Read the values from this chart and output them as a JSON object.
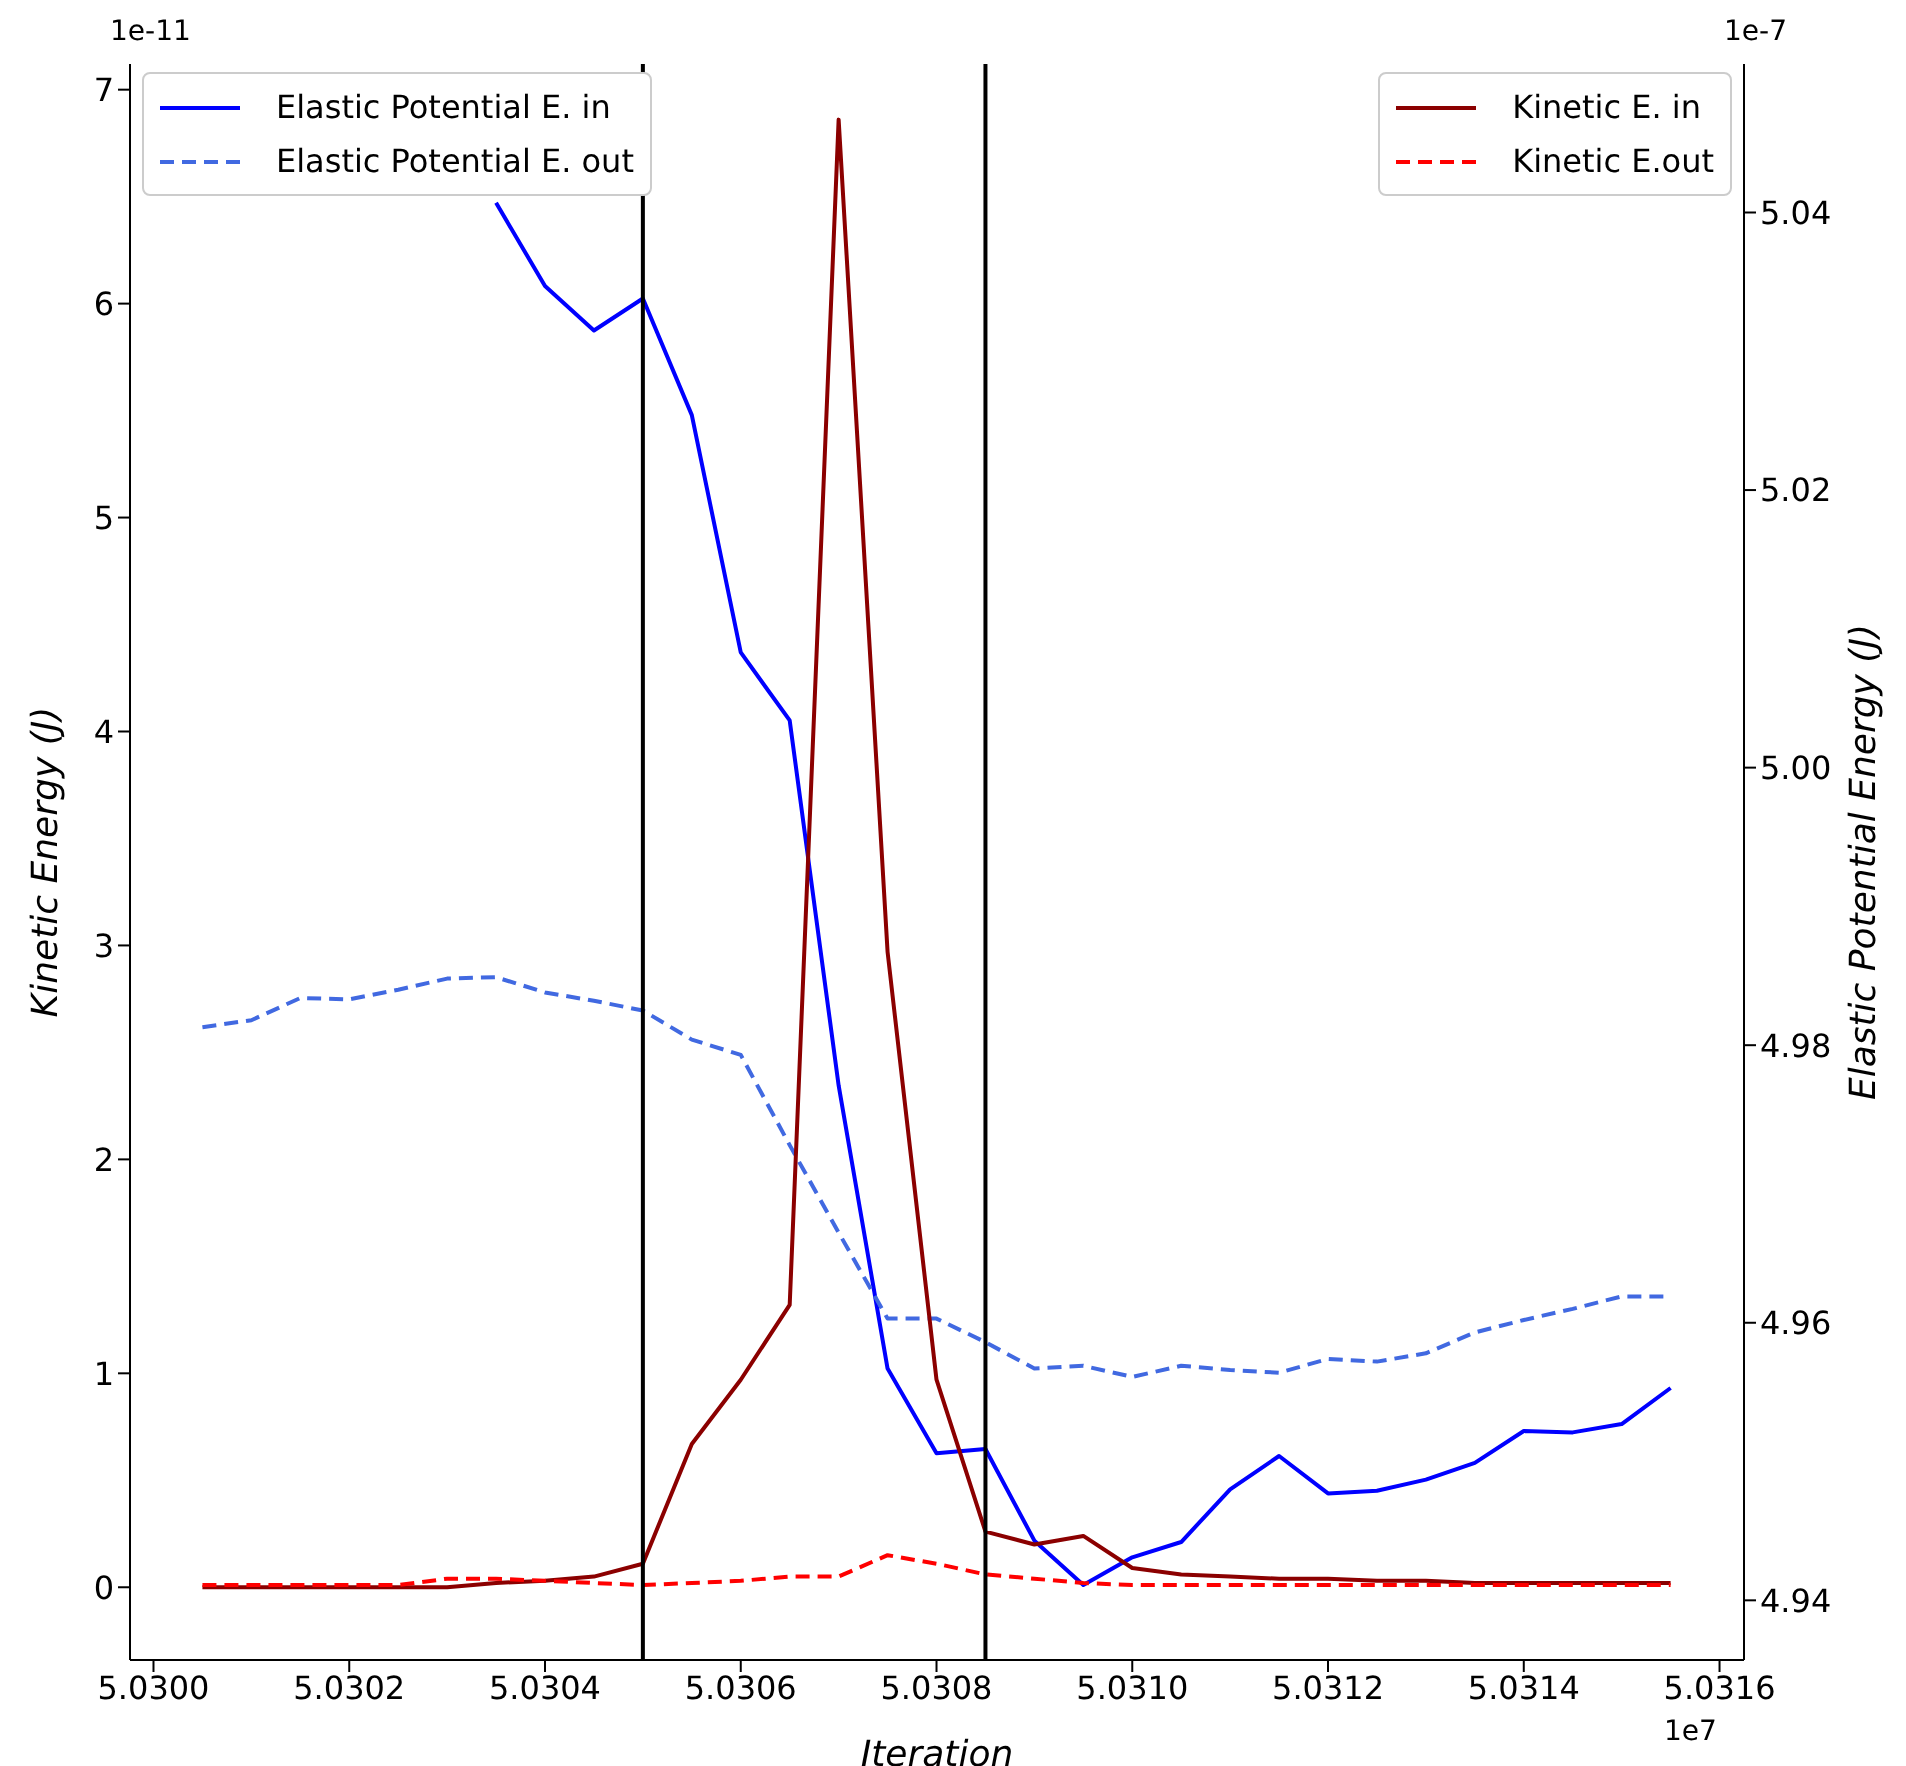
{
  "chart_data": {
    "type": "line",
    "xlabel": "Iteration",
    "ylabel": "Kinetic Energy (J)",
    "y2label": "Elastic Potential Energy (J)",
    "annotations": [
      "1e-11",
      "1e-7",
      "1e7"
    ],
    "x": [
      5.03005,
      5.0301,
      5.03015,
      5.0302,
      5.03025,
      5.0303,
      5.03035,
      5.0304,
      5.03045,
      5.0305,
      5.03055,
      5.0306,
      5.03065,
      5.0307,
      5.03075,
      5.0308,
      5.03085,
      5.0309,
      5.03095,
      5.031,
      5.03105,
      5.0311,
      5.03115,
      5.0312,
      5.03125,
      5.0313,
      5.03135,
      5.0314,
      5.03145,
      5.0315,
      5.03155
    ],
    "series": [
      {
        "name": "Elastic Potential E. in",
        "color": "#0000ff",
        "axis": "y2",
        "line_style": "solid",
        "values": [
          null,
          null,
          null,
          null,
          null,
          null,
          5.0407,
          5.0347,
          5.0315,
          5.0338,
          5.0254,
          5.0083,
          5.0034,
          4.9771,
          4.9567,
          4.9506,
          4.9509,
          4.9443,
          4.9411,
          4.9431,
          4.9442,
          4.948,
          4.9504,
          4.9477,
          4.9479,
          4.9487,
          4.9499,
          4.9522,
          4.9521,
          4.9527,
          4.9553
        ]
      },
      {
        "name": "Elastic Potential E. out",
        "color": "#4169e1",
        "axis": "y2",
        "line_style": "dashed",
        "values": [
          4.9813,
          4.9818,
          4.9834,
          4.9833,
          4.984,
          4.9848,
          4.9849,
          4.9838,
          4.9832,
          4.9825,
          4.9804,
          4.9793,
          4.9728,
          4.9665,
          4.9603,
          4.9603,
          4.9586,
          4.9567,
          4.9569,
          4.9561,
          4.9569,
          4.9566,
          4.9564,
          4.9574,
          4.9572,
          4.9578,
          4.9593,
          4.9602,
          4.961,
          4.9619,
          4.9619
        ]
      },
      {
        "name": "Kinetic E. in",
        "color": "#8b0000",
        "axis": "y",
        "line_style": "solid",
        "values": [
          0,
          0,
          0,
          0,
          0,
          0,
          0.02,
          0.03,
          0.05,
          0.11,
          0.67,
          0.97,
          1.32,
          6.86,
          2.97,
          0.97,
          0.26,
          0.2,
          0.24,
          0.09,
          0.06,
          0.05,
          0.04,
          0.04,
          0.03,
          0.03,
          0.02,
          0.02,
          0.02,
          0.02,
          0.02
        ]
      },
      {
        "name": "Kinetic E.out",
        "color": "#ff0000",
        "axis": "y",
        "line_style": "dashed",
        "values": [
          0.01,
          0.01,
          0.01,
          0.01,
          0.01,
          0.04,
          0.04,
          0.03,
          0.02,
          0.01,
          0.02,
          0.03,
          0.05,
          0.05,
          0.15,
          0.11,
          0.06,
          0.04,
          0.02,
          0.01,
          0.01,
          0.01,
          0.01,
          0.01,
          0.01,
          0.01,
          0.01,
          0.01,
          0.01,
          0.01,
          0.01
        ]
      }
    ],
    "ref_lines": [
      {
        "axis": "x",
        "value": 5.0305,
        "color": "#000000"
      },
      {
        "axis": "x",
        "value": 5.03085,
        "color": "#000000"
      }
    ],
    "xlim": [
      5.029976,
      5.031625
    ],
    "xticks": [
      {
        "value": 5.03,
        "label": "5.0300"
      },
      {
        "value": 5.0302,
        "label": "5.0302"
      },
      {
        "value": 5.0304,
        "label": "5.0304"
      },
      {
        "value": 5.0306,
        "label": "5.0306"
      },
      {
        "value": 5.0308,
        "label": "5.0308"
      },
      {
        "value": 5.031,
        "label": "5.0310"
      },
      {
        "value": 5.0312,
        "label": "5.0312"
      },
      {
        "value": 5.0314,
        "label": "5.0314"
      },
      {
        "value": 5.0316,
        "label": "5.0316"
      }
    ],
    "ylim": [
      -0.34,
      7.12
    ],
    "yticks": [
      0,
      1,
      2,
      3,
      4,
      5,
      6,
      7
    ],
    "y2lim": [
      4.9357,
      5.0507
    ],
    "y2ticks": [
      4.94,
      4.96,
      4.98,
      {
        "value": 5.0,
        "label": "5.00"
      },
      5.02,
      5.04
    ],
    "grid": false,
    "legend": "top",
    "marker": "none"
  }
}
